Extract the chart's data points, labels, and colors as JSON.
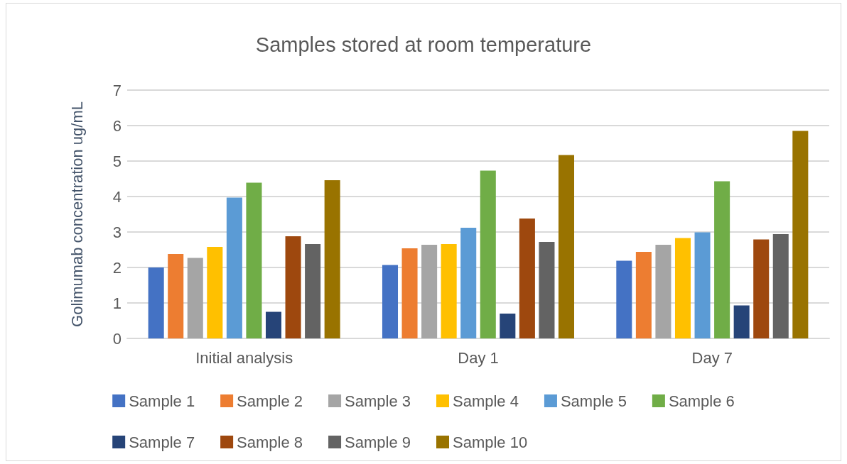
{
  "chart_data": {
    "type": "bar",
    "title": "Samples stored at room temperature",
    "ylabel": "Golimumab concentration ug/mL",
    "categories": [
      "Initial analysis",
      "Day 1",
      "Day 7"
    ],
    "series": [
      {
        "name": "Sample 1",
        "color": "#4472c4",
        "values": [
          2.0,
          2.07,
          2.19
        ]
      },
      {
        "name": "Sample 2",
        "color": "#ed7d31",
        "values": [
          2.38,
          2.54,
          2.44
        ]
      },
      {
        "name": "Sample 3",
        "color": "#a5a5a5",
        "values": [
          2.27,
          2.64,
          2.64
        ]
      },
      {
        "name": "Sample 4",
        "color": "#ffc000",
        "values": [
          2.58,
          2.66,
          2.83
        ]
      },
      {
        "name": "Sample 5",
        "color": "#5b9bd5",
        "values": [
          3.97,
          3.12,
          2.99
        ]
      },
      {
        "name": "Sample 6",
        "color": "#70ad47",
        "values": [
          4.39,
          4.73,
          4.43
        ]
      },
      {
        "name": "Sample 7",
        "color": "#264478",
        "values": [
          0.75,
          0.7,
          0.93
        ]
      },
      {
        "name": "Sample 8",
        "color": "#9e480e",
        "values": [
          2.88,
          3.38,
          2.79
        ]
      },
      {
        "name": "Sample 9",
        "color": "#636363",
        "values": [
          2.66,
          2.72,
          2.94
        ]
      },
      {
        "name": "Sample 10",
        "color": "#997300",
        "values": [
          4.46,
          5.17,
          5.85
        ]
      }
    ],
    "ylim": [
      0,
      7
    ],
    "yticks": [
      0,
      1,
      2,
      3,
      4,
      5,
      6,
      7
    ],
    "grid": "y",
    "legend": "bottom"
  }
}
